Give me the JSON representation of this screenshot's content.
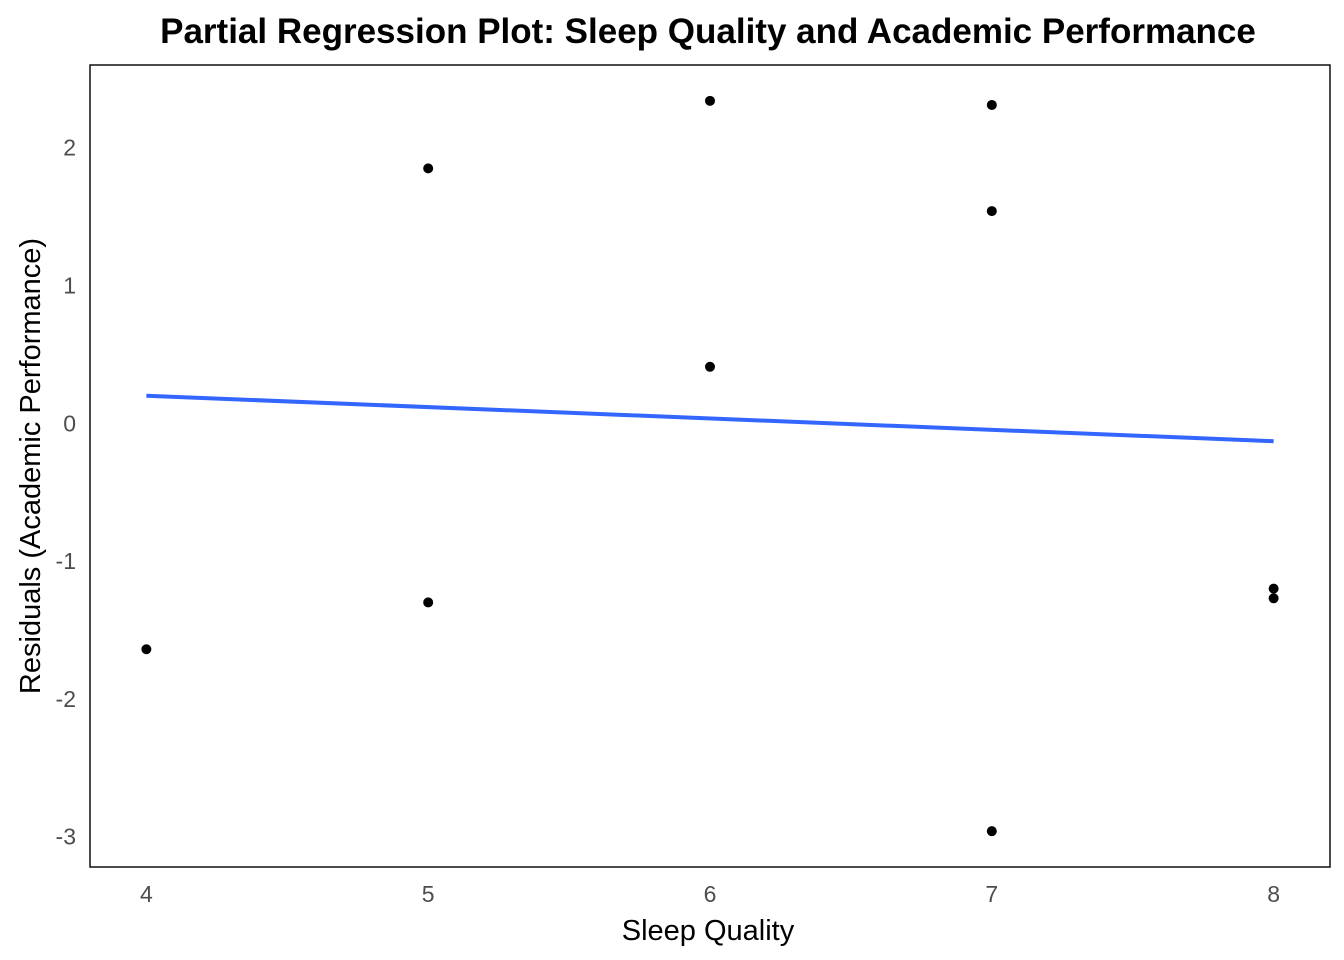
{
  "chart_data": {
    "type": "scatter",
    "title": "Partial Regression Plot: Sleep Quality and Academic Performance",
    "xlabel": "Sleep Quality",
    "ylabel": "Residuals (Academic Performance)",
    "xlim": [
      3.8,
      8.2
    ],
    "ylim": [
      -3.22,
      2.6
    ],
    "x_ticks": [
      4,
      5,
      6,
      7,
      8
    ],
    "y_ticks": [
      -3,
      -2,
      -1,
      0,
      1,
      2
    ],
    "grid": false,
    "legend": "none",
    "points": [
      {
        "x": 4,
        "y": -1.64
      },
      {
        "x": 5,
        "y": 1.85
      },
      {
        "x": 5,
        "y": -1.3
      },
      {
        "x": 6,
        "y": 2.34
      },
      {
        "x": 6,
        "y": 0.41
      },
      {
        "x": 7,
        "y": 2.31
      },
      {
        "x": 7,
        "y": 1.54
      },
      {
        "x": 7,
        "y": -2.96
      },
      {
        "x": 8,
        "y": -1.2
      },
      {
        "x": 8,
        "y": -1.27
      }
    ],
    "fit_line": {
      "x": [
        4,
        8
      ],
      "y": [
        0.2,
        -0.13
      ]
    },
    "colors": {
      "points": "#000000",
      "fit_line": "#3366FF",
      "panel_border": "#000000",
      "tick_text": "#4d4d4d"
    }
  }
}
